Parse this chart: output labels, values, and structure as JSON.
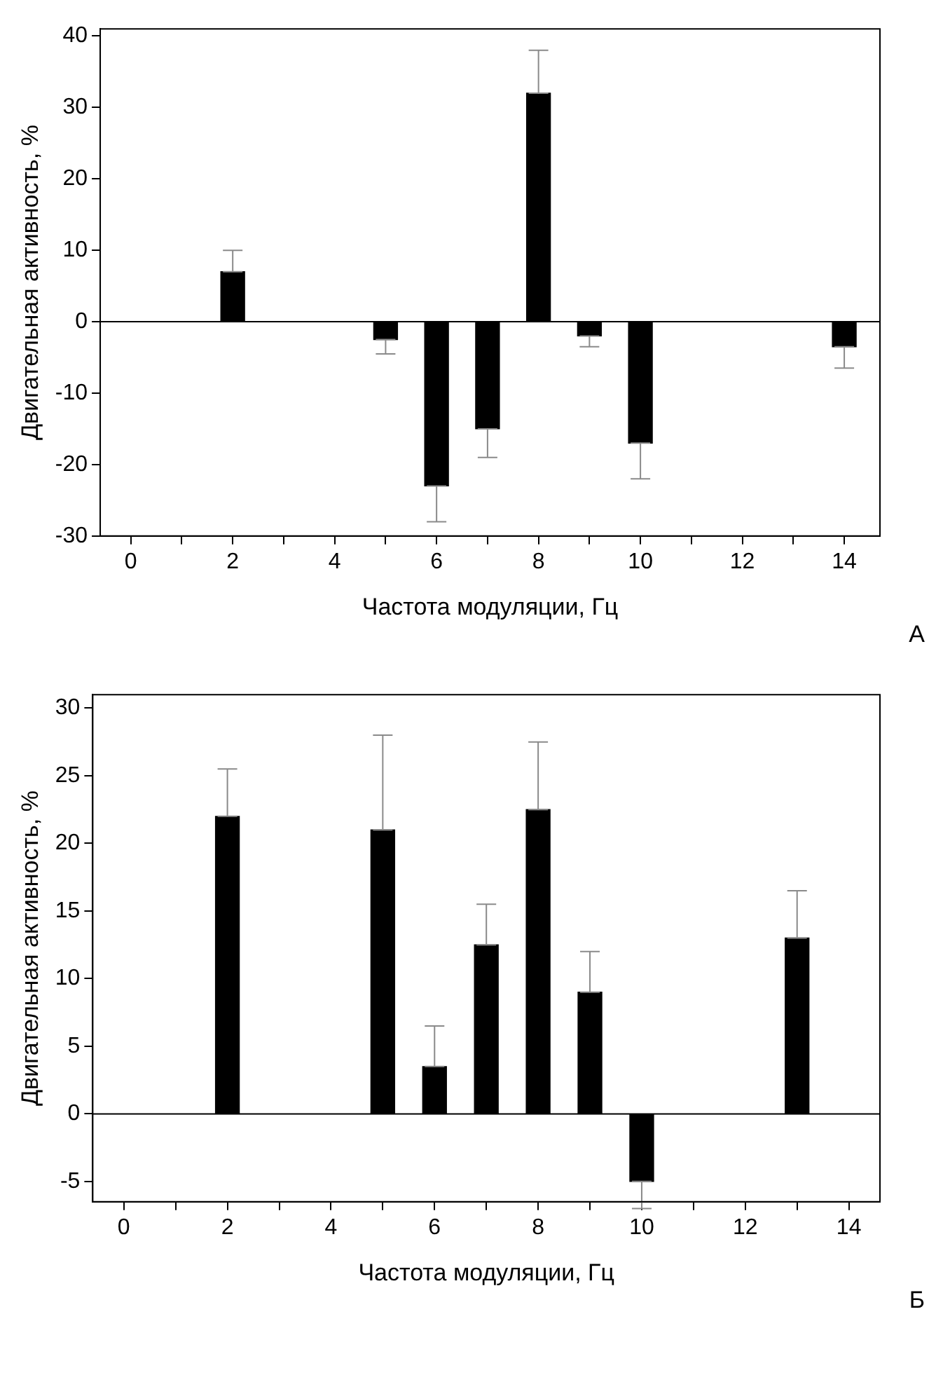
{
  "chart_data": [
    {
      "type": "bar",
      "xlabel": "Частота модуляции, Гц",
      "ylabel": "Двигательная активность, %",
      "x": [
        2,
        5,
        6,
        7,
        8,
        9,
        10,
        14
      ],
      "series": [
        {
          "color": "#000000",
          "values": [
            7,
            -2.5,
            -23,
            -15,
            32,
            -2,
            -17,
            -3.5
          ],
          "errors": [
            [
              7,
              10
            ],
            [
              -4.5,
              -2.5
            ],
            [
              -28,
              -23
            ],
            [
              -19,
              -15
            ],
            [
              32,
              38
            ],
            [
              -3.5,
              -2
            ],
            [
              -22,
              -17
            ],
            [
              -6.5,
              -3.5
            ]
          ]
        }
      ],
      "xlim": [
        -0.6,
        14.7
      ],
      "xticks": [
        0,
        {
          "value": 1,
          "label": null
        },
        2,
        {
          "value": 3,
          "label": null
        },
        4,
        {
          "value": 5,
          "label": null
        },
        6,
        {
          "value": 7,
          "label": null
        },
        8,
        {
          "value": 9,
          "label": null
        },
        10,
        {
          "value": 11,
          "label": null
        },
        12,
        {
          "value": 13,
          "label": null
        },
        14
      ],
      "ylim": [
        -30,
        41
      ],
      "yticks": [
        -30,
        -20,
        -10,
        0,
        10,
        20,
        30,
        40
      ],
      "ref_lines": [
        {
          "axis": "y",
          "value": 0,
          "color": "#000000"
        }
      ],
      "annotations": [
        "А"
      ],
      "grid": false,
      "legend": false
    },
    {
      "type": "bar",
      "xlabel": "Частота модуляции, Гц",
      "ylabel": "Двигательная активность, %",
      "x": [
        2,
        5,
        6,
        7,
        8,
        9,
        10,
        13
      ],
      "series": [
        {
          "color": "#000000",
          "values": [
            22,
            21,
            3.5,
            12.5,
            22.5,
            9,
            -5,
            13
          ],
          "errors": [
            [
              22,
              25.5
            ],
            [
              21,
              28
            ],
            [
              3.5,
              6.5
            ],
            [
              12.5,
              15.5
            ],
            [
              22.5,
              27.5
            ],
            [
              9,
              12
            ],
            [
              -7,
              -5
            ],
            [
              13,
              16.5
            ]
          ]
        }
      ],
      "xlim": [
        -0.6,
        14.6
      ],
      "xticks": [
        0,
        {
          "value": 1,
          "label": null
        },
        2,
        {
          "value": 3,
          "label": null
        },
        4,
        {
          "value": 5,
          "label": null
        },
        6,
        {
          "value": 7,
          "label": null
        },
        8,
        {
          "value": 9,
          "label": null
        },
        10,
        {
          "value": 11,
          "label": null
        },
        12,
        {
          "value": 13,
          "label": null
        },
        14
      ],
      "ylim": [
        -6.5,
        31
      ],
      "yticks": [
        -5,
        0,
        5,
        10,
        15,
        20,
        25,
        30
      ],
      "ref_lines": [
        {
          "axis": "y",
          "value": 0,
          "color": "#000000"
        }
      ],
      "annotations": [
        "Б"
      ],
      "grid": false,
      "legend": false
    }
  ]
}
